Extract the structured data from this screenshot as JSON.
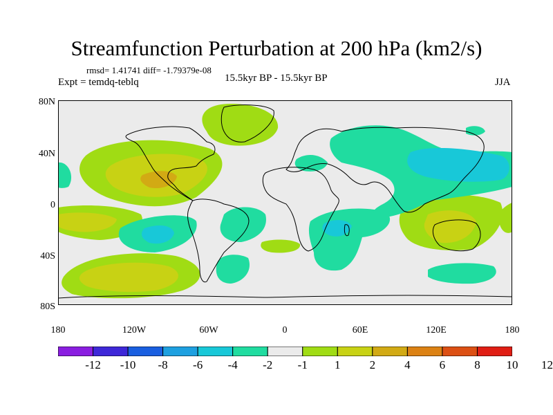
{
  "title": "Streamfunction Perturbation at 200 hPa (km2/s)",
  "stats": "rmsd= 1.41741 diff= -1.79379e-08",
  "expt": "Expt = temdq-teblq",
  "period": "15.5kyr BP - 15.5kyr BP",
  "season": "JJA",
  "axes": {
    "y_ticks": [
      "80N",
      "40N",
      "0",
      "40S",
      "80S"
    ],
    "x_ticks": [
      "180",
      "120W",
      "60W",
      "0",
      "60E",
      "120E",
      "180"
    ]
  },
  "colorbar": {
    "colors": [
      "#8a1ee0",
      "#3e28d8",
      "#1a5fe0",
      "#1ea0e0",
      "#18c8d8",
      "#20dca0",
      "#ebebeb",
      "#a0dc14",
      "#c8d214",
      "#d2aa14",
      "#dc8214",
      "#dc5014",
      "#e01e14"
    ],
    "labels": [
      "-12",
      "-10",
      "-8",
      "-6",
      "-4",
      "-2",
      "-1",
      "1",
      "2",
      "4",
      "6",
      "8",
      "10",
      "12"
    ]
  },
  "field_colors": {
    "background": "#ebebeb",
    "neg1": "#20dca0",
    "neg2": "#18c8d8",
    "pos1": "#a0dc14",
    "pos2": "#c8d214",
    "pos3": "#d2aa14",
    "pos4": "#dc8214"
  }
}
